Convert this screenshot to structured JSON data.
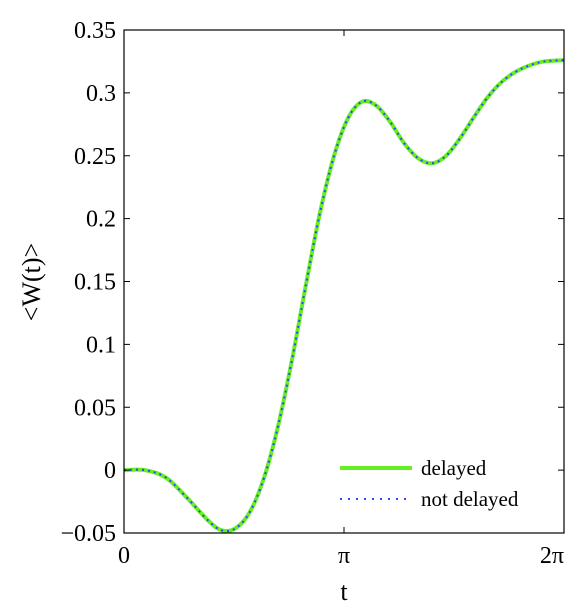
{
  "chart_data": {
    "type": "line",
    "title": "",
    "xlabel": "t",
    "ylabel": "<W(t)>",
    "xlim": [
      0,
      6.2832
    ],
    "ylim": [
      -0.05,
      0.35
    ],
    "x_ticks": [
      {
        "value": 0,
        "label": "0"
      },
      {
        "value": 3.1416,
        "label": "π"
      },
      {
        "value": 6.2832,
        "label": "2π"
      }
    ],
    "y_ticks": [
      {
        "value": -0.05,
        "label": "−0.05"
      },
      {
        "value": 0,
        "label": "0"
      },
      {
        "value": 0.05,
        "label": "0.05"
      },
      {
        "value": 0.1,
        "label": "0.1"
      },
      {
        "value": 0.15,
        "label": "0.15"
      },
      {
        "value": 0.2,
        "label": "0.2"
      },
      {
        "value": 0.25,
        "label": "0.25"
      },
      {
        "value": 0.3,
        "label": "0.3"
      },
      {
        "value": 0.35,
        "label": "0.35"
      }
    ],
    "grid": false,
    "legend_position": "bottom-right",
    "series": [
      {
        "name": "delayed",
        "color": "#66ee22",
        "style": "solid",
        "x": [
          0,
          0.3,
          0.6,
          0.9,
          1.2,
          1.4,
          1.6,
          1.8,
          2.0,
          2.2,
          2.4,
          2.6,
          2.8,
          3.0,
          3.2,
          3.4,
          3.6,
          3.8,
          4.0,
          4.2,
          4.4,
          4.6,
          4.8,
          5.0,
          5.2,
          5.4,
          5.6,
          5.8,
          6.0,
          6.2832
        ],
        "y": [
          0,
          0,
          -0.006,
          -0.022,
          -0.04,
          -0.048,
          -0.046,
          -0.033,
          -0.006,
          0.035,
          0.088,
          0.148,
          0.205,
          0.25,
          0.28,
          0.293,
          0.29,
          0.277,
          0.26,
          0.248,
          0.244,
          0.25,
          0.264,
          0.281,
          0.297,
          0.309,
          0.317,
          0.322,
          0.325,
          0.326
        ]
      },
      {
        "name": "not delayed",
        "color": "#3344ff",
        "style": "dotted",
        "x": [
          0,
          0.3,
          0.6,
          0.9,
          1.2,
          1.4,
          1.6,
          1.8,
          2.0,
          2.2,
          2.4,
          2.6,
          2.8,
          3.0,
          3.2,
          3.4,
          3.6,
          3.8,
          4.0,
          4.2,
          4.4,
          4.6,
          4.8,
          5.0,
          5.2,
          5.4,
          5.6,
          5.8,
          6.0,
          6.2832
        ],
        "y": [
          0,
          0,
          -0.006,
          -0.022,
          -0.04,
          -0.048,
          -0.046,
          -0.033,
          -0.006,
          0.035,
          0.088,
          0.148,
          0.205,
          0.25,
          0.28,
          0.293,
          0.29,
          0.277,
          0.26,
          0.248,
          0.244,
          0.25,
          0.264,
          0.281,
          0.297,
          0.309,
          0.317,
          0.322,
          0.325,
          0.326
        ]
      }
    ]
  }
}
